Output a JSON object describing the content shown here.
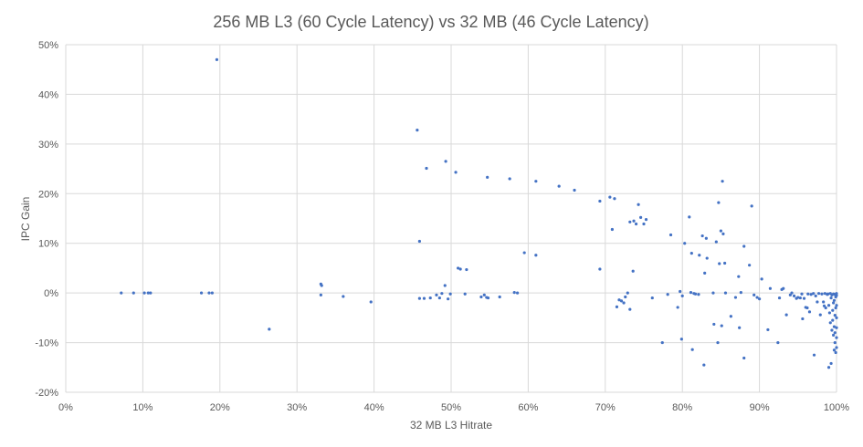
{
  "chart_data": {
    "type": "scatter",
    "title": "256 MB L3 (60 Cycle Latency) vs 32 MB (46 Cycle Latency)",
    "xlabel": "32 MB L3 Hitrate",
    "ylabel": "IPC Gain",
    "xlim": [
      0,
      100
    ],
    "ylim": [
      -20,
      50
    ],
    "x_ticks": [
      0,
      10,
      20,
      30,
      40,
      50,
      60,
      70,
      80,
      90,
      100
    ],
    "y_ticks": [
      -20,
      -10,
      0,
      10,
      20,
      30,
      40,
      50
    ],
    "x_tick_labels": [
      "0%",
      "10%",
      "20%",
      "30%",
      "40%",
      "50%",
      "60%",
      "70%",
      "80%",
      "90%",
      "100%"
    ],
    "y_tick_labels": [
      "-20%",
      "-10%",
      "0%",
      "10%",
      "20%",
      "30%",
      "40%",
      "50%"
    ],
    "grid": "vertical and horizontal",
    "legend": "none",
    "color": "#4472c4",
    "points": [
      [
        7.2,
        0
      ],
      [
        8.8,
        0
      ],
      [
        10.2,
        0
      ],
      [
        10.7,
        0
      ],
      [
        11.0,
        0
      ],
      [
        17.6,
        0
      ],
      [
        18.6,
        0
      ],
      [
        19.0,
        0
      ],
      [
        19.6,
        47
      ],
      [
        26.4,
        -7.3
      ],
      [
        33.1,
        1.8
      ],
      [
        33.2,
        1.5
      ],
      [
        33.1,
        -0.4
      ],
      [
        36.0,
        -0.7
      ],
      [
        39.6,
        -1.8
      ],
      [
        45.6,
        32.8
      ],
      [
        45.9,
        10.4
      ],
      [
        46.8,
        25.1
      ],
      [
        49.3,
        26.5
      ],
      [
        50.6,
        24.3
      ],
      [
        45.9,
        -1.1
      ],
      [
        46.5,
        -1.1
      ],
      [
        47.3,
        -1.0
      ],
      [
        48.1,
        -0.4
      ],
      [
        48.5,
        -1.0
      ],
      [
        48.8,
        -0.1
      ],
      [
        49.2,
        1.5
      ],
      [
        49.6,
        -1.2
      ],
      [
        49.9,
        -0.2
      ],
      [
        50.9,
        5.0
      ],
      [
        51.2,
        4.8
      ],
      [
        52.0,
        4.7
      ],
      [
        51.8,
        -0.2
      ],
      [
        53.9,
        -0.8
      ],
      [
        54.3,
        -0.4
      ],
      [
        54.6,
        -0.9
      ],
      [
        54.8,
        -1.0
      ],
      [
        56.3,
        -0.8
      ],
      [
        54.7,
        23.3
      ],
      [
        57.6,
        23.0
      ],
      [
        58.2,
        0.1
      ],
      [
        58.6,
        0
      ],
      [
        59.5,
        8.1
      ],
      [
        61.0,
        7.6
      ],
      [
        61.0,
        22.5
      ],
      [
        64.0,
        21.5
      ],
      [
        66.0,
        20.7
      ],
      [
        69.3,
        18.5
      ],
      [
        70.6,
        19.3
      ],
      [
        71.2,
        19.0
      ],
      [
        70.9,
        12.8
      ],
      [
        69.3,
        4.8
      ],
      [
        71.5,
        -2.8
      ],
      [
        71.8,
        -1.4
      ],
      [
        72.1,
        -1.6
      ],
      [
        72.4,
        -2.0
      ],
      [
        72.6,
        -0.8
      ],
      [
        72.9,
        0
      ],
      [
        73.2,
        -3.3
      ],
      [
        73.6,
        4.4
      ],
      [
        73.2,
        14.3
      ],
      [
        73.7,
        14.5
      ],
      [
        74.0,
        13.9
      ],
      [
        74.3,
        17.8
      ],
      [
        74.6,
        15.2
      ],
      [
        75.0,
        13.9
      ],
      [
        75.3,
        14.8
      ],
      [
        76.1,
        -1.0
      ],
      [
        77.4,
        -10.0
      ],
      [
        78.1,
        -0.3
      ],
      [
        78.5,
        11.7
      ],
      [
        79.4,
        -2.9
      ],
      [
        79.7,
        0.3
      ],
      [
        80.0,
        -0.6
      ],
      [
        79.9,
        -9.3
      ],
      [
        80.3,
        10.0
      ],
      [
        80.9,
        15.3
      ],
      [
        81.1,
        0.1
      ],
      [
        81.5,
        -0.1
      ],
      [
        81.7,
        -0.2
      ],
      [
        81.3,
        -11.4
      ],
      [
        82.1,
        -0.3
      ],
      [
        81.2,
        8.0
      ],
      [
        82.2,
        7.6
      ],
      [
        82.6,
        11.5
      ],
      [
        83.1,
        11.0
      ],
      [
        82.8,
        -14.5
      ],
      [
        83.2,
        7.0
      ],
      [
        82.9,
        4.0
      ],
      [
        84.0,
        0
      ],
      [
        84.1,
        -6.3
      ],
      [
        84.4,
        10.3
      ],
      [
        84.8,
        5.9
      ],
      [
        84.6,
        -10.0
      ],
      [
        84.7,
        18.2
      ],
      [
        85.0,
        12.5
      ],
      [
        85.2,
        22.5
      ],
      [
        85.3,
        11.9
      ],
      [
        85.1,
        -6.6
      ],
      [
        85.5,
        6.0
      ],
      [
        85.6,
        0
      ],
      [
        86.3,
        -4.7
      ],
      [
        86.9,
        -0.9
      ],
      [
        87.3,
        3.3
      ],
      [
        87.4,
        -7.0
      ],
      [
        87.6,
        0.1
      ],
      [
        88.0,
        9.4
      ],
      [
        88.0,
        -13.1
      ],
      [
        88.7,
        5.6
      ],
      [
        89.0,
        17.5
      ],
      [
        89.3,
        -0.4
      ],
      [
        89.7,
        -0.9
      ],
      [
        90.0,
        -1.2
      ],
      [
        90.3,
        2.8
      ],
      [
        91.1,
        -7.4
      ],
      [
        91.4,
        0.9
      ],
      [
        92.4,
        -10.0
      ],
      [
        92.6,
        -1.0
      ],
      [
        92.9,
        0.7
      ],
      [
        93.1,
        0.9
      ],
      [
        93.5,
        -4.4
      ],
      [
        94.0,
        -0.4
      ],
      [
        94.2,
        0
      ],
      [
        94.5,
        -0.6
      ],
      [
        94.8,
        -1.1
      ],
      [
        95.0,
        -0.9
      ],
      [
        95.3,
        -1.0
      ],
      [
        95.5,
        -0.2
      ],
      [
        95.6,
        -5.2
      ],
      [
        95.8,
        -1.1
      ],
      [
        96.0,
        -2.9
      ],
      [
        96.2,
        -3.0
      ],
      [
        96.3,
        -0.2
      ],
      [
        96.5,
        -3.8
      ],
      [
        96.7,
        -0.3
      ],
      [
        97.0,
        -0.1
      ],
      [
        97.1,
        -12.5
      ],
      [
        97.3,
        -0.6
      ],
      [
        97.5,
        -1.8
      ],
      [
        97.7,
        -0.1
      ],
      [
        97.9,
        -4.4
      ],
      [
        98.1,
        -0.2
      ],
      [
        98.3,
        -1.8
      ],
      [
        98.4,
        -2.6
      ],
      [
        98.6,
        -3.0
      ],
      [
        98.8,
        -0.3
      ],
      [
        99.0,
        -2.5
      ],
      [
        99.0,
        -15.0
      ],
      [
        99.3,
        -14.2
      ],
      [
        99.6,
        -8.5
      ],
      [
        99.7,
        -11.5
      ],
      [
        99.8,
        -10.0
      ],
      [
        99.9,
        -12.0
      ],
      [
        99.1,
        -4.0
      ],
      [
        99.2,
        -6.0
      ],
      [
        99.3,
        -1.0
      ],
      [
        99.4,
        -7.5
      ],
      [
        99.5,
        -3.5
      ],
      [
        99.5,
        -5.5
      ],
      [
        99.6,
        -2.0
      ],
      [
        99.7,
        -6.8
      ],
      [
        99.7,
        -1.5
      ],
      [
        99.8,
        -4.5
      ],
      [
        99.8,
        -8.0
      ],
      [
        99.9,
        -0.8
      ],
      [
        99.9,
        -3.0
      ],
      [
        100.0,
        -9.0
      ],
      [
        100.0,
        -5.0
      ],
      [
        100.0,
        -2.5
      ],
      [
        100.0,
        -11.0
      ],
      [
        100.0,
        -7.0
      ],
      [
        100.0,
        -0.5
      ],
      [
        98.5,
        -0.1
      ],
      [
        98.9,
        -0.2
      ],
      [
        99.2,
        -0.1
      ],
      [
        99.4,
        -0.4
      ],
      [
        99.6,
        -0.2
      ],
      [
        99.8,
        -0.3
      ],
      [
        100.0,
        -0.1
      ]
    ]
  }
}
